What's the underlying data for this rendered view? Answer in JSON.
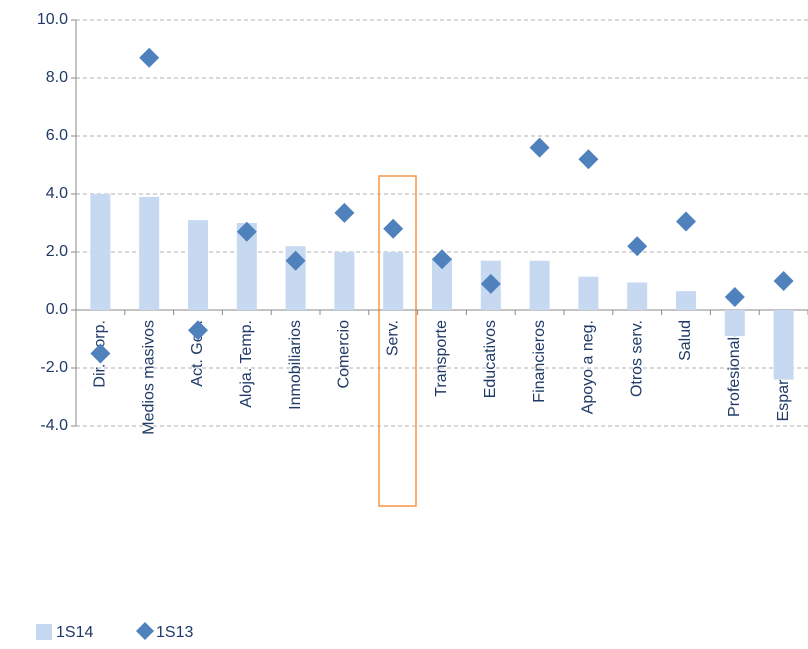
{
  "chart_data": {
    "type": "bar_scatter",
    "categories": [
      "Dir. Corp.",
      "Medios masivos",
      "Act. Gob.",
      "Aloja. Temp.",
      "Inmobiliarios",
      "Comercio",
      "Serv.",
      "Transporte",
      "Educativos",
      "Financieros",
      "Apoyo a neg.",
      "Otros serv.",
      "Salud",
      "Profesionales",
      "Esparcimiento"
    ],
    "series": [
      {
        "name": "1S14",
        "kind": "bar",
        "color": "#c6d9f1",
        "values": [
          4.0,
          3.9,
          3.1,
          3.0,
          2.2,
          2.0,
          2.0,
          1.8,
          1.7,
          1.7,
          1.15,
          0.95,
          0.65,
          -0.9,
          -2.4
        ]
      },
      {
        "name": "1S13",
        "kind": "diamond",
        "color": "#4f81bd",
        "values": [
          -1.5,
          8.7,
          -0.7,
          2.7,
          1.7,
          3.35,
          2.8,
          1.75,
          0.9,
          5.6,
          5.2,
          2.2,
          3.05,
          0.45,
          1.0
        ]
      }
    ],
    "ylim": [
      -4,
      10
    ],
    "yticks": [
      {
        "value": -4,
        "label": "-4.0"
      },
      {
        "value": -2,
        "label": "-2.0"
      },
      {
        "value": 0,
        "label": "0.0"
      },
      {
        "value": 2,
        "label": "2.0"
      },
      {
        "value": 4,
        "label": "4.0"
      },
      {
        "value": 6,
        "label": "6.0"
      },
      {
        "value": 8,
        "label": "8.0"
      },
      {
        "value": 10,
        "label": "10.0"
      }
    ],
    "grid": true
  }
}
